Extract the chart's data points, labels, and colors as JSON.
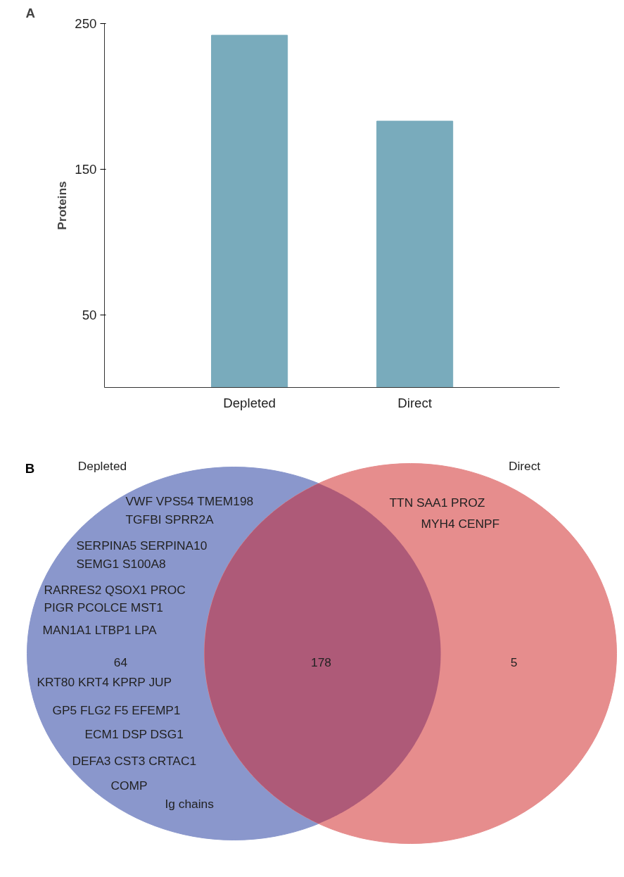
{
  "chart_data": [
    {
      "type": "bar",
      "title": "A",
      "ylabel": "Proteins",
      "categories": [
        "Depleted",
        "Direct"
      ],
      "values": [
        242,
        183
      ],
      "color": "#79abbc",
      "ylim": [
        0,
        250
      ],
      "yticks": [
        50,
        150,
        250
      ],
      "grid": false
    },
    {
      "type": "other",
      "title": "B",
      "categories": [
        "Depleted",
        null,
        "Direct"
      ],
      "colors": [
        "#8a97cc",
        "#ae5a78",
        "#e68d8d"
      ],
      "values": [
        64,
        178,
        5
      ],
      "value_labels": [
        "64",
        "178",
        "5"
      ],
      "annotations": [
        "VWF VPS54 TMEM198",
        "TGFBI SPRR2A",
        "SERPINA5 SERPINA10",
        "SEMG1 S100A8",
        "RARRES2 QSOX1 PROC",
        "PIGR PCOLCE MST1",
        "MAN1A1 LTBP1 LPA",
        "KRT80 KRT4 KPRP JUP",
        "GP5 FLG2 F5 EFEMP1",
        "ECM1 DSP DSG1",
        "DEFA3 CST3 CRTAC1",
        "COMP",
        "Ig chains",
        "TTN SAA1 PROZ",
        "MYH4 CENPF"
      ]
    }
  ]
}
